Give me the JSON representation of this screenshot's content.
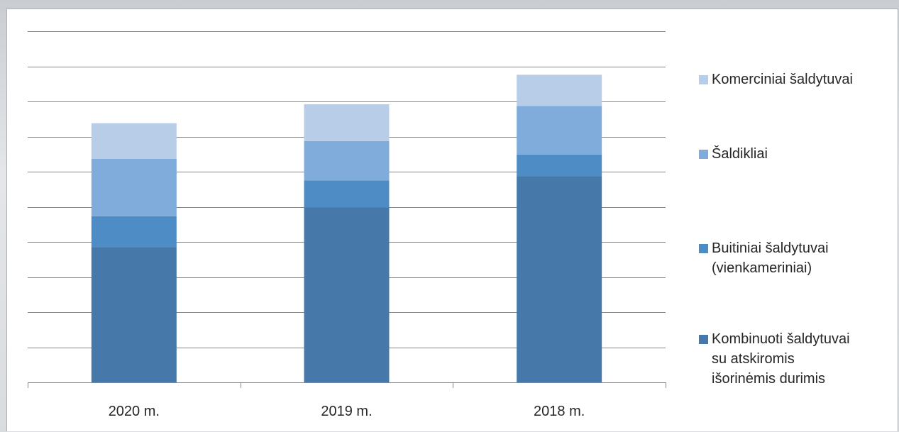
{
  "chart_data": {
    "type": "bar",
    "stacked": true,
    "categories": [
      "2020 m.",
      "2019 m.",
      "2018 m."
    ],
    "ylim": [
      0,
      10
    ],
    "gridlines": true,
    "legend_position": "right",
    "series": [
      {
        "name": "Kombinuoti šaldytuvai su atskiromis išorinėmis durimis",
        "color": "#4679aa",
        "values": [
          3.85,
          4.98,
          5.87
        ]
      },
      {
        "name": "Buitiniai šaldytuvai (vienkameriniai)",
        "color": "#4e8cc6",
        "values": [
          0.88,
          0.77,
          0.62
        ]
      },
      {
        "name": "Šaldikliai",
        "color": "#80acdb",
        "values": [
          1.64,
          1.12,
          1.38
        ]
      },
      {
        "name": "Komerciniai šaldytuvai",
        "color": "#b8cde8",
        "values": [
          1.01,
          1.05,
          0.89
        ]
      }
    ]
  },
  "legend": {
    "items": [
      {
        "label": "Komerciniai šaldytuvai",
        "color": "#b8cde8"
      },
      {
        "label": "Šaldikliai",
        "color": "#80acdb"
      },
      {
        "label": "Buitiniai šaldytuvai\n(vienkameriniai)",
        "color": "#4e8cc6"
      },
      {
        "label": "Kombinuoti šaldytuvai\nsu atskiromis\nišorinėmis durimis",
        "color": "#4679aa"
      }
    ]
  }
}
